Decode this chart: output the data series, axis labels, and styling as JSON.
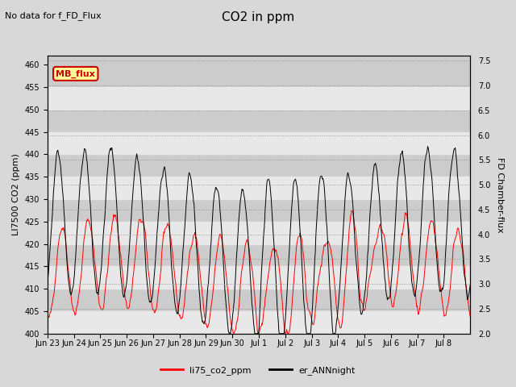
{
  "title": "CO2 in ppm",
  "top_left_text": "No data for f_FD_Flux",
  "ylabel_left": "LI7500 CO2 (ppm)",
  "ylabel_right": "FD Chamber-flux",
  "ylim_left": [
    400,
    462
  ],
  "ylim_right": [
    2.0,
    7.6
  ],
  "yticks_left": [
    400,
    405,
    410,
    415,
    420,
    425,
    430,
    435,
    440,
    445,
    450,
    455,
    460
  ],
  "yticks_right": [
    2.0,
    2.5,
    3.0,
    3.5,
    4.0,
    4.5,
    5.0,
    5.5,
    6.0,
    6.5,
    7.0,
    7.5
  ],
  "xtick_labels": [
    "Jun 23",
    "Jun 24",
    "Jun 25",
    "Jun 26",
    "Jun 27",
    "Jun 28",
    "Jun 29",
    "Jun 30",
    "Jul 1",
    "Jul 2",
    "Jul 3",
    "Jul 4",
    "Jul 5",
    "Jul 6",
    "Jul 7",
    "Jul 8"
  ],
  "color_red": "#ff0000",
  "color_black": "#000000",
  "legend_red": "li75_co2_ppm",
  "legend_black": "er_ANNnight",
  "mb_flux_label": "MB_flux",
  "mb_flux_color": "#cc0000",
  "mb_flux_bg": "#ffff99",
  "bg_color": "#d8d8d8",
  "plot_bg_dark": "#cccccc",
  "plot_bg_light": "#e8e8e8",
  "seed": 42,
  "n_days": 16
}
